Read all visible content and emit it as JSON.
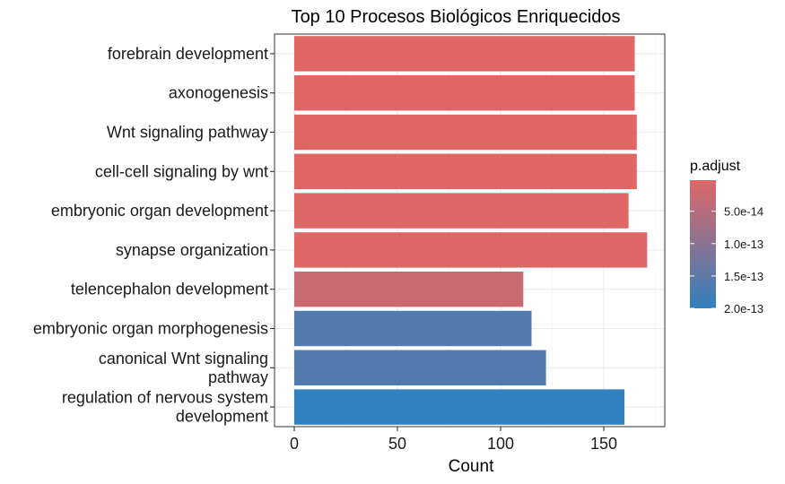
{
  "chart_data": {
    "type": "bar",
    "orientation": "horizontal",
    "title": "Top 10 Procesos Biológicos Enriquecidos",
    "xlabel": "Count",
    "ylabel": "",
    "xlim": [
      0,
      178
    ],
    "xticks": [
      0,
      50,
      100,
      150
    ],
    "categories": [
      {
        "lines": [
          "forebrain development"
        ],
        "value": 165,
        "p_adjust": 2e-15
      },
      {
        "lines": [
          "axonogenesis"
        ],
        "value": 165,
        "p_adjust": 2e-15
      },
      {
        "lines": [
          "Wnt signaling pathway"
        ],
        "value": 166,
        "p_adjust": 2e-15
      },
      {
        "lines": [
          "cell-cell signaling by wnt"
        ],
        "value": 166,
        "p_adjust": 2e-15
      },
      {
        "lines": [
          "embryonic organ development"
        ],
        "value": 162,
        "p_adjust": 5e-15
      },
      {
        "lines": [
          "synapse organization"
        ],
        "value": 171,
        "p_adjust": 3e-15
      },
      {
        "lines": [
          "telencephalon development"
        ],
        "value": 111,
        "p_adjust": 2.8e-14
      },
      {
        "lines": [
          "embryonic organ morphogenesis"
        ],
        "value": 115,
        "p_adjust": 1.6e-13
      },
      {
        "lines": [
          "canonical Wnt signaling",
          "pathway"
        ],
        "value": 122,
        "p_adjust": 1.65e-13
      },
      {
        "lines": [
          "regulation of nervous system",
          "development"
        ],
        "value": 160,
        "p_adjust": 2e-13
      }
    ],
    "legend": {
      "title": "p.adjust",
      "position": "right",
      "range": [
        2e-15,
        2e-13
      ],
      "low_color": "#E06666",
      "high_color": "#3280BE",
      "ticks": [
        {
          "value": 5e-14,
          "label": "5.0e-14"
        },
        {
          "value": 1e-13,
          "label": "1.0e-13"
        },
        {
          "value": 1.5e-13,
          "label": "1.5e-13"
        },
        {
          "value": 2e-13,
          "label": "2.0e-13"
        }
      ]
    }
  }
}
